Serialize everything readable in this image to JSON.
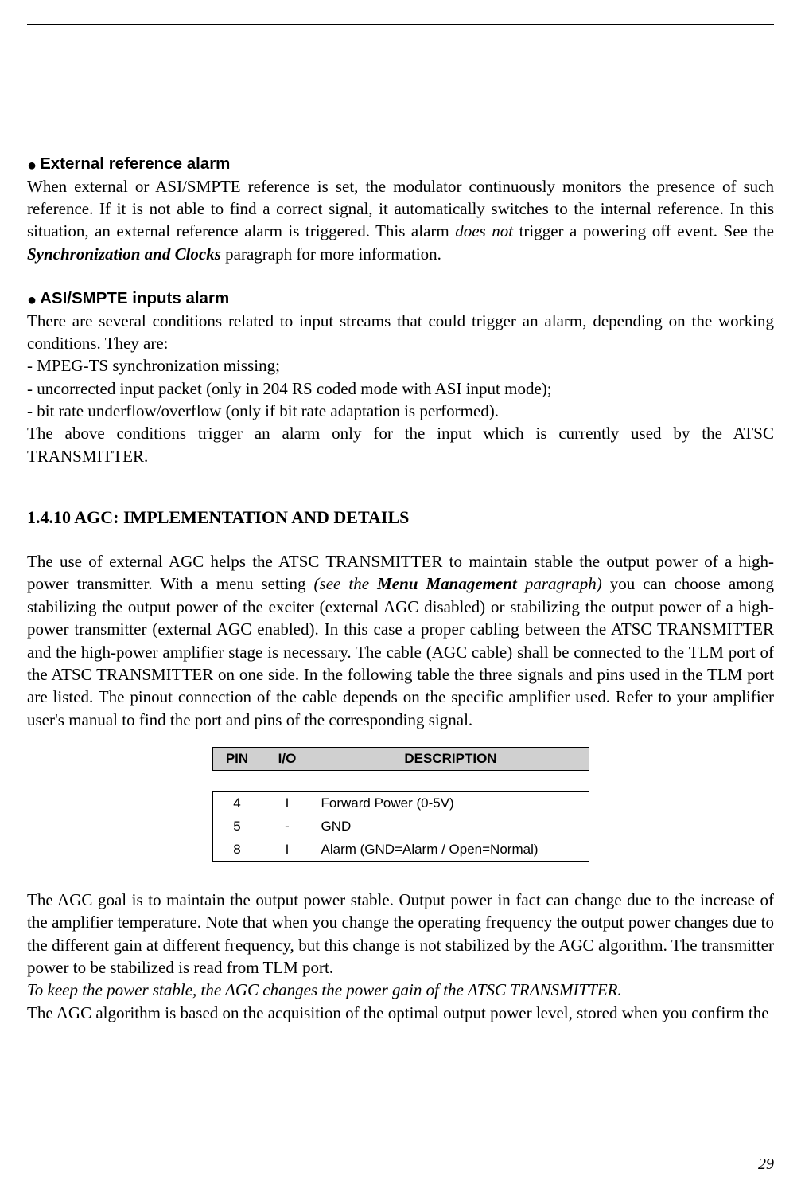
{
  "page": {
    "number": "29"
  },
  "sections": {
    "ext_ref": {
      "heading": "External reference alarm",
      "p1_a": "When external or ASI/SMPTE reference is set, the modulator continuously monitors the presence of such reference. If it is not able to find a correct signal, it automatically switches to the internal reference. In this situation, an external reference alarm is triggered. This alarm ",
      "p1_italic1": "does not",
      "p1_b": " trigger a powering off event. See the ",
      "p1_bolditalic": "Synchronization and Clocks",
      "p1_c": " paragraph for more information."
    },
    "asi": {
      "heading": "ASI/SMPTE inputs alarm",
      "p1": "There are several conditions related to input streams that could trigger an alarm, depending on the working conditions. They are:",
      "li1": "- MPEG-TS synchronization missing;",
      "li2": "- uncorrected input packet (only in 204 RS coded mode with ASI input mode);",
      "li3": "- bit rate underflow/overflow (only if bit rate adaptation is performed).",
      "p2": "The above conditions trigger an alarm only for the input which is currently used by the ATSC TRANSMITTER."
    },
    "agc": {
      "heading": "1.4.10 AGC: IMPLEMENTATION AND DETAILS",
      "p1_a": "The use of external AGC helps the ATSC TRANSMITTER to maintain stable the output power of a high-power transmitter. With a menu setting ",
      "p1_italic_a": "(see the ",
      "p1_bolditalic": "Menu Management",
      "p1_italic_b": " paragraph)",
      "p1_b": " you can choose among stabilizing the output power of the exciter (external AGC disabled) or stabilizing the output power of a high-power transmitter (external AGC enabled). In this case a proper cabling between the ATSC TRANSMITTER and the high-power amplifier stage is necessary. The cable (AGC cable) shall be connected to the TLM port of the ATSC TRANSMITTER on one side. In the following table the three signals and pins used in the TLM port are listed. The pinout connection of the cable depends on the specific amplifier used. Refer to your amplifier user's manual to find the port and pins of the corresponding signal.",
      "table": {
        "columns": {
          "pin": "PIN",
          "io": "I/O",
          "desc": "DESCRIPTION"
        },
        "rows": [
          {
            "pin": "4",
            "io": "I",
            "desc": "Forward Power (0-5V)"
          },
          {
            "pin": "5",
            "io": "-",
            "desc": "GND"
          },
          {
            "pin": "8",
            "io": "I",
            "desc": "Alarm (GND=Alarm / Open=Normal)"
          }
        ]
      },
      "p2": "The AGC goal is to maintain the output power stable. Output power in fact can change due to the increase of the amplifier temperature. Note that when you change the operating frequency the output power changes due to the different gain at different frequency, but this change is not stabilized by the AGC algorithm. The transmitter power to be stabilized is read from TLM port.",
      "p3_italic": "To keep the power stable, the AGC changes the power gain of the ATSC TRANSMITTER.",
      "p4": "The AGC algorithm is based on the acquisition of the optimal output power level, stored when you confirm the"
    }
  }
}
